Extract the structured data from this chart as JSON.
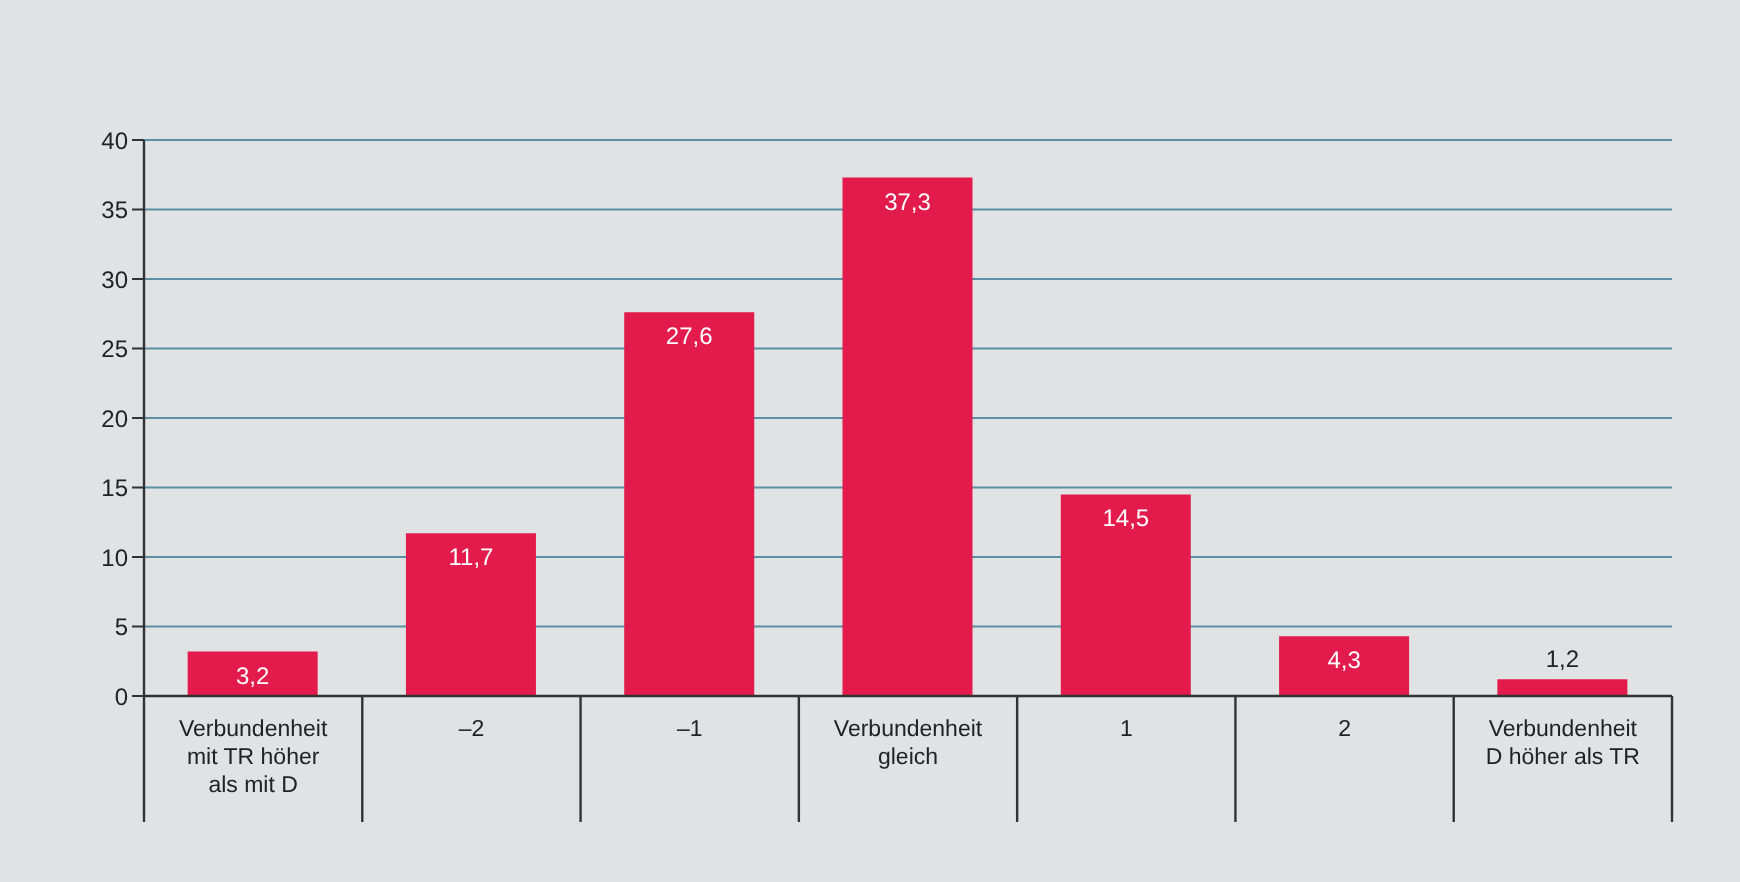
{
  "chart_data": {
    "type": "bar",
    "categories": [
      "Verbundenheit mit TR höher als mit D",
      "–2",
      "–1",
      "Verbundenheit gleich",
      "1",
      "2",
      "Verbundenheit D höher als TR"
    ],
    "values": [
      3.2,
      11.7,
      27.6,
      37.3,
      14.5,
      4.3,
      1.2
    ],
    "value_labels": [
      "3,2",
      "11,7",
      "27,6",
      "37,3",
      "14,5",
      "4,3",
      "1,2"
    ],
    "color": "#e31b4d",
    "ylim": [
      0,
      40
    ],
    "yticks": [
      0,
      5,
      10,
      15,
      20,
      25,
      30,
      35,
      40
    ],
    "grid": "y",
    "legend": false
  }
}
